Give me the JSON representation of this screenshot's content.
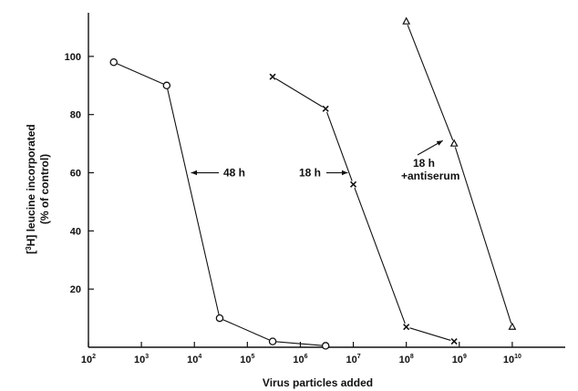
{
  "chart_data": {
    "type": "scatter",
    "xlabel": "Virus particles added",
    "ylabel_line1_pre": "[",
    "ylabel_line1_sup": "3",
    "ylabel_line1_post": "H] leucine incorporated",
    "ylabel_line2": "(% of control)",
    "x_scale": "log",
    "xlim": [
      100,
      100000000000
    ],
    "ylim": [
      0,
      115
    ],
    "x_ticks": [
      {
        "value": 100,
        "base": "10",
        "exp": "2"
      },
      {
        "value": 1000,
        "base": "10",
        "exp": "3"
      },
      {
        "value": 10000,
        "base": "10",
        "exp": "4"
      },
      {
        "value": 100000,
        "base": "10",
        "exp": "5"
      },
      {
        "value": 1000000,
        "base": "10",
        "exp": "6"
      },
      {
        "value": 10000000,
        "base": "10",
        "exp": "7"
      },
      {
        "value": 100000000,
        "base": "10",
        "exp": "8"
      },
      {
        "value": 1000000000,
        "base": "10",
        "exp": "9"
      },
      {
        "value": 10000000000,
        "base": "10",
        "exp": "10"
      }
    ],
    "y_ticks": [
      "20",
      "40",
      "60",
      "80",
      "100"
    ],
    "grid": false,
    "series": [
      {
        "name": "48 h",
        "marker": "circle",
        "points": [
          [
            300,
            98
          ],
          [
            3000,
            90
          ],
          [
            30000,
            10
          ],
          [
            300000,
            2
          ],
          [
            3000000,
            0.5
          ]
        ]
      },
      {
        "name": "18 h",
        "marker": "cross",
        "points": [
          [
            300000,
            93
          ],
          [
            3000000,
            82
          ],
          [
            10000000,
            56
          ],
          [
            100000000,
            7
          ],
          [
            800000000,
            2
          ]
        ]
      },
      {
        "name_line1": "18 h",
        "name_line2": "+antiserum",
        "marker": "triangle",
        "points": [
          [
            100000000,
            112
          ],
          [
            800000000,
            70
          ],
          [
            10000000000,
            7
          ]
        ]
      }
    ],
    "annotations": [
      {
        "text": "48 h",
        "arrow_to": [
          8000,
          60
        ]
      },
      {
        "text": "18 h",
        "arrow_to": [
          8500000,
          60
        ]
      },
      {
        "text_line1": "18 h",
        "text_line2": "+antiserum",
        "arrow_to": [
          550000000,
          72
        ]
      }
    ]
  }
}
